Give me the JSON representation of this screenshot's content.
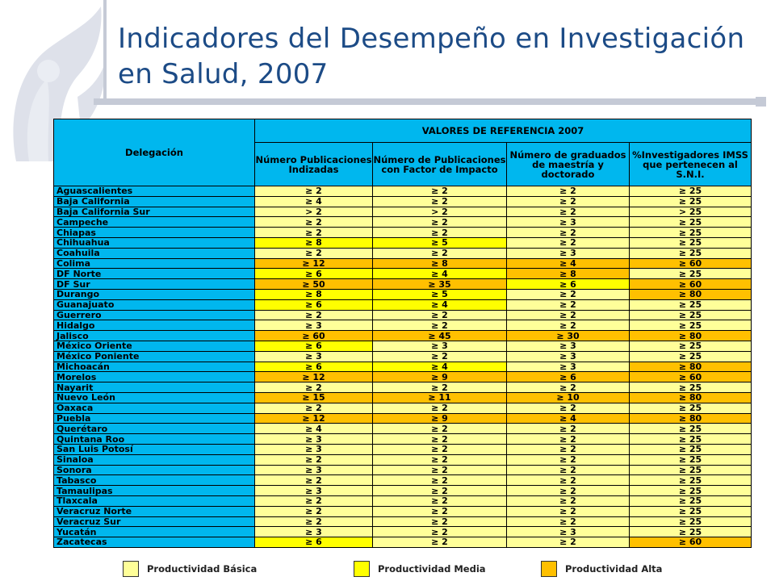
{
  "title": "Indicadores del Desempeño en Investigación en Salud, 2007",
  "colors": {
    "title": "#1c4b86",
    "header": "#00b7ee",
    "basica": "#ffff99",
    "media": "#ffff00",
    "alta": "#ffc000"
  },
  "icons": {
    "logo": "imss-eagle-logo-watermark"
  },
  "table": {
    "col_delegacion": "Delegación",
    "group_header": "VALORES DE REFERENCIA 2007",
    "col1": "Número Publicaciones Indizadas",
    "col2": "Número de Publicaciones con Factor de Impacto",
    "col3": "Número de graduados de maestría y doctorado",
    "col4": "%Investigadores IMSS que pertenecen al S.N.I.",
    "rows": [
      {
        "name": "Aguascalientes",
        "v": [
          "≥ 2",
          "≥ 2",
          "≥ 2",
          "≥ 25"
        ],
        "c": [
          "b",
          "b",
          "b",
          "b"
        ]
      },
      {
        "name": "Baja California",
        "v": [
          "≥ 4",
          "≥ 2",
          "≥ 2",
          "≥ 25"
        ],
        "c": [
          "b",
          "b",
          "b",
          "b"
        ]
      },
      {
        "name": "Baja California Sur",
        "v": [
          "> 2",
          "> 2",
          "≥ 2",
          "> 25"
        ],
        "c": [
          "b",
          "b",
          "b",
          "b"
        ]
      },
      {
        "name": "Campeche",
        "v": [
          "≥ 2",
          "≥ 2",
          "≥ 3",
          "≥ 25"
        ],
        "c": [
          "b",
          "b",
          "b",
          "b"
        ]
      },
      {
        "name": "Chiapas",
        "v": [
          "≥ 2",
          "≥ 2",
          "≥ 2",
          "≥ 25"
        ],
        "c": [
          "b",
          "b",
          "b",
          "b"
        ]
      },
      {
        "name": "Chihuahua",
        "v": [
          "≥ 8",
          "≥ 5",
          "≥ 2",
          "≥ 25"
        ],
        "c": [
          "m",
          "m",
          "b",
          "b"
        ]
      },
      {
        "name": "Coahuila",
        "v": [
          "≥ 2",
          "≥ 2",
          "≥ 3",
          "≥ 25"
        ],
        "c": [
          "b",
          "b",
          "b",
          "b"
        ]
      },
      {
        "name": "Colima",
        "v": [
          "≥ 12",
          "≥ 8",
          "≥ 4",
          "≥ 60"
        ],
        "c": [
          "a",
          "a",
          "a",
          "a"
        ]
      },
      {
        "name": "DF Norte",
        "v": [
          "≥ 6",
          "≥ 4",
          "≥ 8",
          "≥ 25"
        ],
        "c": [
          "m",
          "m",
          "a",
          "b"
        ]
      },
      {
        "name": "DF Sur",
        "v": [
          "≥ 50",
          "≥ 35",
          "≥ 6",
          "≥ 60"
        ],
        "c": [
          "a",
          "a",
          "m",
          "a"
        ]
      },
      {
        "name": "Durango",
        "v": [
          "≥ 8",
          "≥ 5",
          "≥ 2",
          "≥ 80"
        ],
        "c": [
          "m",
          "m",
          "b",
          "a"
        ]
      },
      {
        "name": "Guanajuato",
        "v": [
          "≥ 6",
          "≥ 4",
          "≥ 2",
          "≥ 25"
        ],
        "c": [
          "m",
          "m",
          "b",
          "b"
        ]
      },
      {
        "name": "Guerrero",
        "v": [
          "≥ 2",
          "≥ 2",
          "≥ 2",
          "≥ 25"
        ],
        "c": [
          "b",
          "b",
          "b",
          "b"
        ]
      },
      {
        "name": "Hidalgo",
        "v": [
          "≥ 3",
          "≥ 2",
          "≥ 2",
          "≥ 25"
        ],
        "c": [
          "b",
          "b",
          "b",
          "b"
        ]
      },
      {
        "name": "Jalisco",
        "v": [
          "≥ 60",
          "≥ 45",
          "≥ 30",
          "≥ 80"
        ],
        "c": [
          "a",
          "a",
          "a",
          "a"
        ]
      },
      {
        "name": "México Oriente",
        "v": [
          "≥ 6",
          "≥ 3",
          "≥ 3",
          "≥ 25"
        ],
        "c": [
          "m",
          "b",
          "b",
          "b"
        ]
      },
      {
        "name": "México Poniente",
        "v": [
          "≥ 3",
          "≥ 2",
          "≥ 3",
          "≥ 25"
        ],
        "c": [
          "b",
          "b",
          "b",
          "b"
        ]
      },
      {
        "name": "Michoacán",
        "v": [
          "≥ 6",
          "≥ 4",
          "≥ 3",
          "≥ 80"
        ],
        "c": [
          "m",
          "m",
          "b",
          "a"
        ]
      },
      {
        "name": "Morelos",
        "v": [
          "≥ 12",
          "≥ 9",
          "≥ 6",
          "≥ 60"
        ],
        "c": [
          "a",
          "a",
          "a",
          "a"
        ]
      },
      {
        "name": "Nayarit",
        "v": [
          "≥ 2",
          "≥ 2",
          "≥ 2",
          "≥ 25"
        ],
        "c": [
          "b",
          "b",
          "b",
          "b"
        ]
      },
      {
        "name": "Nuevo León",
        "v": [
          "≥ 15",
          "≥ 11",
          "≥ 10",
          "≥ 80"
        ],
        "c": [
          "a",
          "a",
          "a",
          "a"
        ]
      },
      {
        "name": "Oaxaca",
        "v": [
          "≥ 2",
          "≥ 2",
          "≥ 2",
          "≥ 25"
        ],
        "c": [
          "b",
          "b",
          "b",
          "b"
        ]
      },
      {
        "name": "Puebla",
        "v": [
          "≥ 12",
          "≥ 9",
          "≥ 4",
          "≥ 80"
        ],
        "c": [
          "a",
          "a",
          "a",
          "a"
        ]
      },
      {
        "name": "Querétaro",
        "v": [
          "≥ 4",
          "≥ 2",
          "≥ 2",
          "≥ 25"
        ],
        "c": [
          "b",
          "b",
          "b",
          "b"
        ]
      },
      {
        "name": "Quintana Roo",
        "v": [
          "≥ 3",
          "≥ 2",
          "≥ 2",
          "≥ 25"
        ],
        "c": [
          "b",
          "b",
          "b",
          "b"
        ]
      },
      {
        "name": "San Luis Potosí",
        "v": [
          "≥ 3",
          "≥ 2",
          "≥ 2",
          "≥ 25"
        ],
        "c": [
          "b",
          "b",
          "b",
          "b"
        ]
      },
      {
        "name": "Sinaloa",
        "v": [
          "≥ 2",
          "≥ 2",
          "≥ 2",
          "≥ 25"
        ],
        "c": [
          "b",
          "b",
          "b",
          "b"
        ]
      },
      {
        "name": "Sonora",
        "v": [
          "≥ 3",
          "≥ 2",
          "≥ 2",
          "≥ 25"
        ],
        "c": [
          "b",
          "b",
          "b",
          "b"
        ]
      },
      {
        "name": "Tabasco",
        "v": [
          "≥ 2",
          "≥ 2",
          "≥ 2",
          "≥ 25"
        ],
        "c": [
          "b",
          "b",
          "b",
          "b"
        ]
      },
      {
        "name": "Tamaulipas",
        "v": [
          "≥ 3",
          "≥ 2",
          "≥ 2",
          "≥ 25"
        ],
        "c": [
          "b",
          "b",
          "b",
          "b"
        ]
      },
      {
        "name": "Tlaxcala",
        "v": [
          "≥ 2",
          "≥ 2",
          "≥ 2",
          "≥ 25"
        ],
        "c": [
          "b",
          "b",
          "b",
          "b"
        ]
      },
      {
        "name": "Veracruz Norte",
        "v": [
          "≥ 2",
          "≥ 2",
          "≥ 2",
          "≥ 25"
        ],
        "c": [
          "b",
          "b",
          "b",
          "b"
        ]
      },
      {
        "name": "Veracruz Sur",
        "v": [
          "≥ 2",
          "≥ 2",
          "≥ 2",
          "≥ 25"
        ],
        "c": [
          "b",
          "b",
          "b",
          "b"
        ]
      },
      {
        "name": "Yucatán",
        "v": [
          "≥ 3",
          "≥ 2",
          "≥ 3",
          "≥ 25"
        ],
        "c": [
          "b",
          "b",
          "b",
          "b"
        ]
      },
      {
        "name": "Zacatecas",
        "v": [
          "≥ 6",
          "≥ 2",
          "≥ 2",
          "≥ 60"
        ],
        "c": [
          "m",
          "b",
          "b",
          "a"
        ]
      }
    ]
  },
  "legend": {
    "basica": "Productividad Básica",
    "media": "Productividad Media",
    "alta": "Productividad Alta"
  }
}
